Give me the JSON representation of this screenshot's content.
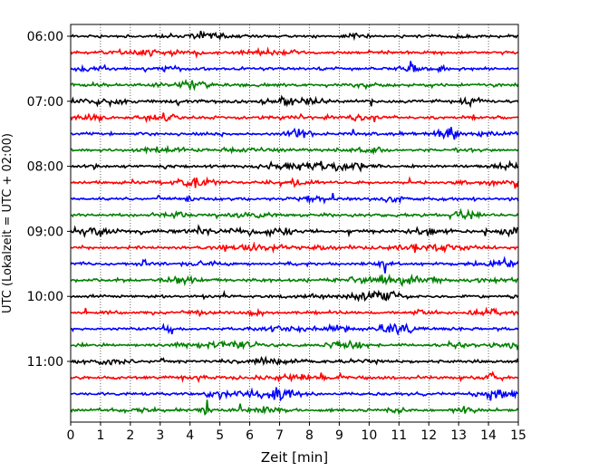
{
  "chart_data": {
    "type": "line",
    "title": "",
    "xlabel": "Zeit  [min]",
    "ylabel": "UTC (Lokalzeit = UTC + 02:00)",
    "xlim": [
      0,
      15
    ],
    "x_ticks": [
      0,
      1,
      2,
      3,
      4,
      5,
      6,
      7,
      8,
      9,
      10,
      11,
      12,
      13,
      14,
      15
    ],
    "y_tick_labels": [
      "06:00",
      "07:00",
      "08:00",
      "09:00",
      "10:00",
      "11:00"
    ],
    "grid": "vertical dotted",
    "trace_colors": [
      "#000000",
      "#ff0000",
      "#0000ff",
      "#008000"
    ],
    "traces_start_utc": "06:00",
    "trace_interval_min": 15,
    "trace_count": 24
  }
}
